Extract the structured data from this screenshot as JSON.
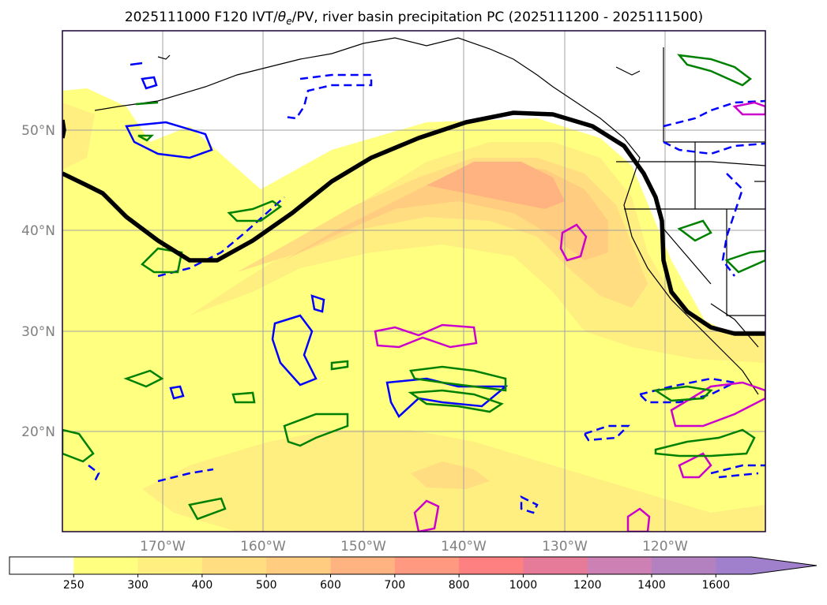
{
  "title": {
    "prefix": "2025111000 F120 IVT/",
    "theta": "θ",
    "sub": "e",
    "suffix": "/PV, river basin precipitation PC (2025111200 - 2025111500)"
  },
  "map": {
    "lat_labels": [
      "50°N",
      "40°N",
      "30°N",
      "20°N"
    ],
    "lon_labels": [
      "170°W",
      "160°W",
      "150°W",
      "140°W",
      "130°W",
      "120°W"
    ],
    "lat_range": [
      10,
      60
    ],
    "lon_range": [
      -180,
      -110
    ]
  },
  "colorbar": {
    "labels": [
      "250",
      "300",
      "400",
      "500",
      "600",
      "700",
      "800",
      "1000",
      "1200",
      "1400",
      "1600"
    ],
    "colors": [
      "#ffffff",
      "#ffff80",
      "#ffee80",
      "#ffdd80",
      "#ffcc80",
      "#ffb380",
      "#ff9a80",
      "#ff8080",
      "#e67a99",
      "#cc80b3",
      "#b380c0",
      "#a080cc"
    ],
    "extend": "max"
  },
  "colors": {
    "pv_contour": "#000000",
    "theta_e_low": "#0000ff",
    "theta_e_high": "#cc00cc",
    "precip": "#008000",
    "coast": "#000000",
    "grid": "#a0a0a0"
  }
}
